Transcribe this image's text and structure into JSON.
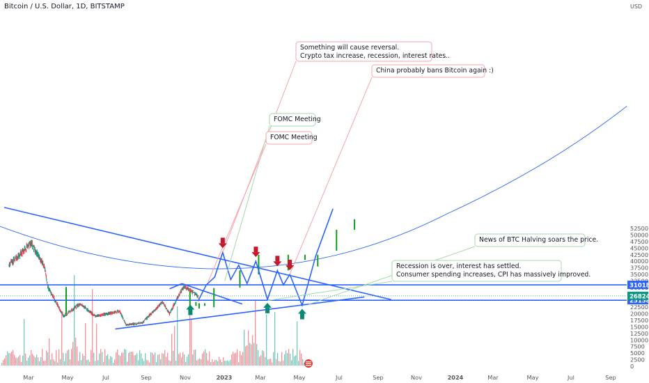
{
  "header": {
    "symbol": "Bitcoin / U.S. Dollar",
    "timeframe": "1D",
    "exchange": "BITSTAMP"
  },
  "colors": {
    "up": "#089981",
    "down": "#f23645",
    "projection": "#0f9d1e",
    "trendline": "#2962ff",
    "level_line": "#2962ff",
    "curve": "#2962ff",
    "arrow_down": "#c4182d",
    "arrow_up": "#0a8a73",
    "current_price": "#089981"
  },
  "axis": {
    "currency": "USD",
    "y_ticks": [
      "52500",
      "50000",
      "47500",
      "45000",
      "42500",
      "40000",
      "37500",
      "35000",
      "32500",
      "30000",
      "27500",
      "25000",
      "22500",
      "20000",
      "17500",
      "15000",
      "12500",
      "10000",
      "7500",
      "5000",
      "2500",
      "0"
    ],
    "x_labels": [
      "Mar",
      "May",
      "Jul",
      "Sep",
      "Nov",
      "2023",
      "Mar",
      "May",
      "Jul",
      "Sep",
      "Nov",
      "2024",
      "Mar",
      "May",
      "Jul",
      "Sep"
    ]
  },
  "chart_data": {
    "type": "candlestick",
    "symbol": "Bitcoin / U.S. Dollar",
    "timeframe": "1D",
    "exchange": "BITSTAMP",
    "price_levels": [
      {
        "label": "31018",
        "value": 31018
      },
      {
        "label": "25158",
        "value": 25158
      }
    ],
    "current_price": {
      "label": "26824",
      "value": 26824
    },
    "price_path": [
      {
        "date": "2022-02-01",
        "price": 38500
      },
      {
        "date": "2022-03-28",
        "price": 47000
      },
      {
        "date": "2022-04-30",
        "price": 38000
      },
      {
        "date": "2022-05-10",
        "price": 30000
      },
      {
        "date": "2022-06-18",
        "price": 19000
      },
      {
        "date": "2022-07-29",
        "price": 23800
      },
      {
        "date": "2022-09-06",
        "price": 19000
      },
      {
        "date": "2022-11-05",
        "price": 21000
      },
      {
        "date": "2022-11-21",
        "price": 15700
      },
      {
        "date": "2023-01-01",
        "price": 16600
      },
      {
        "date": "2023-02-20",
        "price": 24500
      },
      {
        "date": "2023-03-10",
        "price": 20000
      },
      {
        "date": "2023-04-14",
        "price": 30400
      },
      {
        "date": "2023-05-01",
        "price": 29000
      },
      {
        "date": "2023-05-20",
        "price": 26800
      }
    ],
    "projection_path": [
      {
        "date": "2023-05-20",
        "price": 24800
      },
      {
        "date": "2023-06-10",
        "price": 31000
      },
      {
        "date": "2023-07-01",
        "price": 34000
      },
      {
        "date": "2023-07-21",
        "price": 43400
      },
      {
        "date": "2023-08-10",
        "price": 33000
      },
      {
        "date": "2023-08-30",
        "price": 38500
      },
      {
        "date": "2023-09-20",
        "price": 31500
      },
      {
        "date": "2023-10-12",
        "price": 40000
      },
      {
        "date": "2023-11-10",
        "price": 25500
      },
      {
        "date": "2023-12-05",
        "price": 36500
      },
      {
        "date": "2023-12-20",
        "price": 31000
      },
      {
        "date": "2024-01-05",
        "price": 35000
      },
      {
        "date": "2024-02-05",
        "price": 23200
      },
      {
        "date": "2024-03-10",
        "price": 42000
      },
      {
        "date": "2024-04-22",
        "price": 60000
      }
    ],
    "trendlines": [
      {
        "from": {
          "date": "2022-01-20",
          "price": 60500
        },
        "to": {
          "date": "2024-09-15",
          "price": 25400
        }
      },
      {
        "from": {
          "date": "2022-10-25",
          "price": 14200
        },
        "to": {
          "date": "2024-07-10",
          "price": 26400
        }
      },
      {
        "from": {
          "date": "2023-03-10",
          "price": 29500
        },
        "to": {
          "date": "2023-04-10",
          "price": 31500
        }
      },
      {
        "from": {
          "date": "2023-04-10",
          "price": 31500
        },
        "to": {
          "date": "2023-09-08",
          "price": 23700
        }
      }
    ],
    "projection_bars": [
      {
        "date": "2022-06-24",
        "low": 20000,
        "high": 30200
      },
      {
        "date": "2023-04-30",
        "low": 22500,
        "high": 28500
      },
      {
        "date": "2023-05-15",
        "low": 23000,
        "high": 24500
      },
      {
        "date": "2023-05-23",
        "low": 22000,
        "high": 24000
      },
      {
        "date": "2023-06-06",
        "low": 23000,
        "high": 24000
      },
      {
        "date": "2023-06-29",
        "low": 22500,
        "high": 29800
      },
      {
        "date": "2023-09-02",
        "low": 30000,
        "high": 36500
      },
      {
        "date": "2023-10-19",
        "low": 35000,
        "high": 42500
      },
      {
        "date": "2024-01-01",
        "low": 36500,
        "high": 42500
      },
      {
        "date": "2024-02-12",
        "low": 40500,
        "high": 42500
      },
      {
        "date": "2024-03-15",
        "low": 38000,
        "high": 42500
      },
      {
        "date": "2024-05-01",
        "low": 44000,
        "high": 52000
      },
      {
        "date": "2024-06-15",
        "low": 52000,
        "high": 56000
      }
    ],
    "markers": [
      {
        "type": "down",
        "date": "2023-07-21",
        "price": 43400
      },
      {
        "type": "down",
        "date": "2023-10-12",
        "price": 40000
      },
      {
        "type": "down",
        "date": "2023-12-05",
        "price": 36500
      },
      {
        "type": "down",
        "date": "2024-01-05",
        "price": 35000
      },
      {
        "type": "up",
        "date": "2023-05-01",
        "price": 24800
      },
      {
        "type": "up",
        "date": "2023-11-10",
        "price": 25500
      },
      {
        "type": "up",
        "date": "2024-02-05",
        "price": 23200
      }
    ],
    "annotations": [
      {
        "text": "Something will cause reversal.\nCrypto tax increase, recession, interest rates..",
        "border": "#f5a3aa",
        "box_pos": [
          425,
          60
        ],
        "box_size": [
          195,
          28
        ],
        "target": {
          "date": "2023-07-21",
          "price": 43400
        }
      },
      {
        "text": "China probably bans Bitcoin again :)",
        "border": "#f5a3aa",
        "box_pos": [
          534,
          93
        ],
        "box_size": [
          162,
          18
        ],
        "target": {
          "date": "2024-01-05",
          "price": 35000
        }
      },
      {
        "text": "FOMC Meeting",
        "border": "#a3d9a8",
        "box_pos": [
          387,
          163
        ],
        "box_size": [
          66,
          18
        ],
        "target": {
          "date": "2023-07-26",
          "price": 32500
        }
      },
      {
        "text": "FOMC Meeting",
        "border": "#f5a3aa",
        "box_pos": [
          382,
          189
        ],
        "box_size": [
          66,
          18
        ],
        "target": {
          "date": "2023-06-14",
          "price": 32000
        }
      },
      {
        "text": "News of BTC Halving soars the price.",
        "border": "#a3d9a8",
        "box_pos": [
          682,
          336
        ],
        "box_size": [
          158,
          18
        ],
        "target": {
          "date": "2024-02-20",
          "price": 23500
        }
      },
      {
        "text": "Recession is over, interest has settled.\nConsumer spending increases, CPI has massively improved.",
        "border": "#a3d9a8",
        "box_pos": [
          563,
          374
        ],
        "box_size": [
          243,
          30
        ],
        "target": {
          "date": "2023-11-10",
          "price": 25000
        }
      }
    ],
    "volume_color": "#f23645"
  }
}
